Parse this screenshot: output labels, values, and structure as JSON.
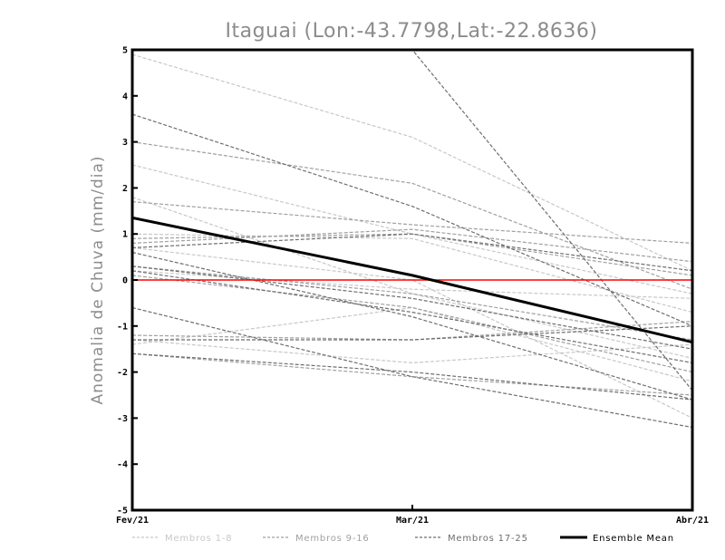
{
  "chart_data": {
    "type": "line",
    "title": "Itaguai (Lon:-43.7798,Lat:-22.8636)",
    "xlabel": "",
    "ylabel": "Anomalia de Chuva (mm/dia)",
    "categories": [
      "Fev/21",
      "Mar/21",
      "Abr/21"
    ],
    "ylim": [
      -5,
      5
    ],
    "yticks": [
      -5,
      -4,
      -3,
      -2,
      -1,
      0,
      1,
      2,
      3,
      4,
      5
    ],
    "ytick_labels": [
      "-5",
      "-4",
      "-3",
      "-2",
      "-1",
      "0",
      "1",
      "2",
      "3",
      "4",
      "5"
    ],
    "grid": false,
    "zero_line": {
      "value": 0,
      "color": "#ff0000"
    },
    "legend": {
      "placement": "bottom",
      "items": [
        {
          "label": "Membros 1-8",
          "style": "dashed",
          "color": "#c8c8c8"
        },
        {
          "label": "Membros 9-16",
          "style": "dashed",
          "color": "#a0a0a0"
        },
        {
          "label": "Membros 17-25",
          "style": "dashed",
          "color": "#6e6e6e"
        },
        {
          "label": "Ensemble Mean",
          "style": "solid",
          "color": "#000000"
        }
      ]
    },
    "series": [
      {
        "group": "Membros 1-8",
        "values": [
          4.9,
          3.1,
          0.2
        ]
      },
      {
        "group": "Membros 1-8",
        "values": [
          2.5,
          1.0,
          -0.3
        ]
      },
      {
        "group": "Membros 1-8",
        "values": [
          1.8,
          -0.3,
          -1.7
        ]
      },
      {
        "group": "Membros 1-8",
        "values": [
          1.0,
          0.9,
          -0.7
        ]
      },
      {
        "group": "Membros 1-8",
        "values": [
          0.2,
          -0.2,
          -0.4
        ]
      },
      {
        "group": "Membros 1-8",
        "values": [
          -1.3,
          -1.8,
          -1.4
        ]
      },
      {
        "group": "Membros 1-8",
        "values": [
          -1.4,
          -0.6,
          -2.2
        ]
      },
      {
        "group": "Membros 1-8",
        "values": [
          0.7,
          0.0,
          -3.0
        ]
      },
      {
        "group": "Membros 9-16",
        "values": [
          3.0,
          2.1,
          -0.2
        ]
      },
      {
        "group": "Membros 9-16",
        "values": [
          1.7,
          1.2,
          0.8
        ]
      },
      {
        "group": "Membros 9-16",
        "values": [
          0.8,
          1.1,
          0.4
        ]
      },
      {
        "group": "Membros 9-16",
        "values": [
          0.3,
          -0.3,
          -1.3
        ]
      },
      {
        "group": "Membros 9-16",
        "values": [
          0.1,
          -0.6,
          -2.0
        ]
      },
      {
        "group": "Membros 9-16",
        "values": [
          -1.2,
          -1.3,
          -0.9
        ]
      },
      {
        "group": "Membros 9-16",
        "values": [
          -1.6,
          -2.1,
          -2.5
        ]
      },
      {
        "group": "Membros 9-16",
        "values": [
          0.9,
          1.0,
          0.1
        ]
      },
      {
        "group": "Membros 17-25",
        "values": [
          3.6,
          1.6,
          -1.0
        ]
      },
      {
        "group": "Membros 17-25",
        "values": [
          5.0,
          5.0,
          -2.4
        ]
      },
      {
        "group": "Membros 17-25",
        "values": [
          0.7,
          1.0,
          0.2
        ]
      },
      {
        "group": "Membros 17-25",
        "values": [
          0.6,
          -0.8,
          -2.6
        ]
      },
      {
        "group": "Membros 17-25",
        "values": [
          0.3,
          -0.4,
          -1.5
        ]
      },
      {
        "group": "Membros 17-25",
        "values": [
          -0.6,
          -2.1,
          -3.2
        ]
      },
      {
        "group": "Membros 17-25",
        "values": [
          -1.6,
          -2.0,
          -2.6
        ]
      },
      {
        "group": "Membros 17-25",
        "values": [
          -1.3,
          -1.3,
          -1.0
        ]
      },
      {
        "group": "Membros 17-25",
        "values": [
          0.2,
          -0.7,
          -1.8
        ]
      },
      {
        "group": "Ensemble Mean",
        "name": "Ensemble Mean",
        "values": [
          1.35,
          0.1,
          -1.35
        ]
      }
    ]
  }
}
